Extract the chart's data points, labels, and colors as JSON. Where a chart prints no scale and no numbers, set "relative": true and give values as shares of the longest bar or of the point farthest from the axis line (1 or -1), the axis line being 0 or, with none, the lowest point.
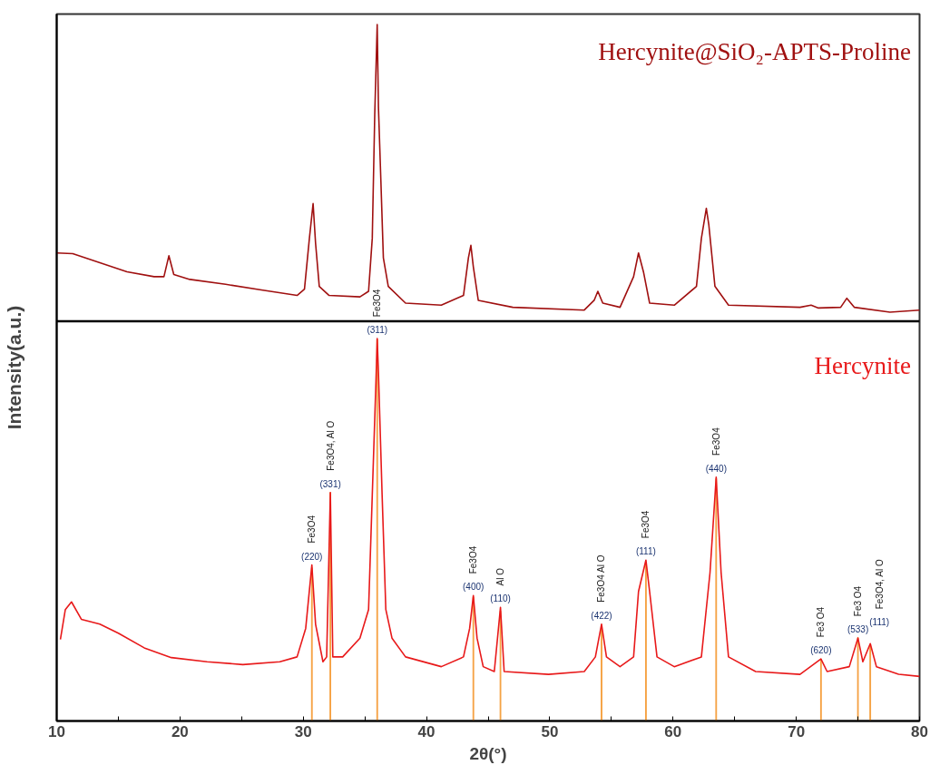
{
  "chart_data": {
    "type": "line",
    "relative": true,
    "xlabel": "2θ(°)",
    "ylabel": "Intensity(a.u.)",
    "xlim": [
      10,
      80
    ],
    "xticks": [
      10,
      {
        "value": 15,
        "label": null
      },
      20,
      {
        "value": 25,
        "label": null
      },
      30,
      {
        "value": 35,
        "label": null
      },
      40,
      {
        "value": 45,
        "label": null
      },
      50,
      {
        "value": 55,
        "label": null
      },
      60,
      {
        "value": 65,
        "label": null
      },
      70,
      {
        "value": 75,
        "label": null
      },
      80
    ],
    "tick_labels": "x",
    "grid": false,
    "series": [
      {
        "name": "Hercynite@SiO₂-APTS-Proline",
        "color": "#a01010",
        "x": [
          10.0,
          11.3,
          13.5,
          15.7,
          17.9,
          18.7,
          19.1,
          19.5,
          20.8,
          23.7,
          26.6,
          29.5,
          30.1,
          30.5,
          30.8,
          31.0,
          31.3,
          32.1,
          34.6,
          35.3,
          35.6,
          35.8,
          36.0,
          36.1,
          36.3,
          36.5,
          36.9,
          38.3,
          41.2,
          43.0,
          43.4,
          43.6,
          43.8,
          44.2,
          47.0,
          52.8,
          53.6,
          53.9,
          54.3,
          55.7,
          56.8,
          57.2,
          57.6,
          58.1,
          60.1,
          61.9,
          62.3,
          62.7,
          62.9,
          63.4,
          64.5,
          70.3,
          71.2,
          71.8,
          73.6,
          74.1,
          74.7,
          77.6,
          80.0
        ],
        "values": [
          0.672,
          0.671,
          0.658,
          0.645,
          0.638,
          0.638,
          0.668,
          0.641,
          0.634,
          0.627,
          0.619,
          0.611,
          0.62,
          0.693,
          0.743,
          0.686,
          0.624,
          0.611,
          0.609,
          0.617,
          0.693,
          0.87,
          1.0,
          0.882,
          0.775,
          0.665,
          0.624,
          0.6,
          0.597,
          0.611,
          0.665,
          0.683,
          0.652,
          0.604,
          0.594,
          0.59,
          0.604,
          0.617,
          0.6,
          0.594,
          0.638,
          0.672,
          0.645,
          0.6,
          0.597,
          0.624,
          0.693,
          0.736,
          0.713,
          0.624,
          0.597,
          0.594,
          0.597,
          0.593,
          0.594,
          0.607,
          0.594,
          0.587,
          0.59
        ]
      },
      {
        "name": "Hercynite",
        "color": "#e8191a",
        "x": [
          10.3,
          10.7,
          11.2,
          12.0,
          13.5,
          15.0,
          17.1,
          19.3,
          22.2,
          25.1,
          28.1,
          29.5,
          30.2,
          30.7,
          31.0,
          31.6,
          31.9,
          32.2,
          32.4,
          33.2,
          34.6,
          35.3,
          35.6,
          35.9,
          36.0,
          36.1,
          36.4,
          36.7,
          37.2,
          38.3,
          41.2,
          43.0,
          43.5,
          43.8,
          44.1,
          44.6,
          45.5,
          46.0,
          46.3,
          49.9,
          52.8,
          53.7,
          54.2,
          54.6,
          55.7,
          56.8,
          57.2,
          57.8,
          58.1,
          58.7,
          60.1,
          62.3,
          63.0,
          63.5,
          63.9,
          64.5,
          66.7,
          70.3,
          72.0,
          72.5,
          74.3,
          75.0,
          75.4,
          76.0,
          76.5,
          78.3,
          80.0
        ],
        "values": [
          0.117,
          0.16,
          0.171,
          0.146,
          0.139,
          0.126,
          0.105,
          0.091,
          0.085,
          0.081,
          0.085,
          0.092,
          0.133,
          0.224,
          0.139,
          0.085,
          0.092,
          0.328,
          0.092,
          0.092,
          0.119,
          0.16,
          0.324,
          0.488,
          0.549,
          0.501,
          0.324,
          0.16,
          0.119,
          0.092,
          0.078,
          0.092,
          0.133,
          0.18,
          0.119,
          0.078,
          0.071,
          0.163,
          0.071,
          0.067,
          0.071,
          0.092,
          0.139,
          0.092,
          0.078,
          0.092,
          0.186,
          0.231,
          0.186,
          0.092,
          0.078,
          0.092,
          0.213,
          0.35,
          0.213,
          0.092,
          0.071,
          0.067,
          0.089,
          0.071,
          0.078,
          0.119,
          0.085,
          0.111,
          0.078,
          0.067,
          0.064
        ]
      },
      {
        "type": "bar",
        "color": "#f5a040",
        "x": [
          30.7,
          32.2,
          36.0,
          43.8,
          46.0,
          54.2,
          57.8,
          63.5,
          72.0,
          75.0,
          76.0
        ],
        "values": [
          0.22,
          0.328,
          0.548,
          0.178,
          0.158,
          0.138,
          0.228,
          0.348,
          0.089,
          0.12,
          0.11
        ]
      }
    ],
    "ref_lines": [
      {
        "axis": "y",
        "value": 0.574,
        "color": "#000000"
      }
    ],
    "annotations": [
      "Fe3O4",
      {
        "text": "(220)",
        "x": 30.7,
        "y": 0.224
      },
      "Fe3O4, Al O",
      {
        "text": "(331)",
        "x": 32.2,
        "y": 0.328
      },
      "Fe3O4",
      {
        "text": "(311)",
        "x": 36.0,
        "y": 0.549
      },
      "Fe3O4",
      {
        "text": "(400)",
        "x": 43.8,
        "y": 0.18
      },
      "Al O",
      {
        "text": "(110)",
        "x": 46.0,
        "y": 0.163
      },
      "Fe3O4 Al O",
      {
        "text": "(422)",
        "x": 54.2,
        "y": 0.139
      },
      "Fe3O4",
      {
        "text": "(111)",
        "x": 57.8,
        "y": 0.231
      },
      "Fe3O4",
      {
        "text": "(440)",
        "x": 63.5,
        "y": 0.35
      },
      "Fe3 O4",
      {
        "text": "(620)",
        "x": 72.0,
        "y": 0.089
      },
      "Fe3 O4",
      {
        "text": "(533)",
        "x": 75.0,
        "y": 0.119
      },
      "Fe3O4, Al O",
      {
        "text": "(111)",
        "x": 76.0,
        "y": 0.111
      }
    ]
  }
}
